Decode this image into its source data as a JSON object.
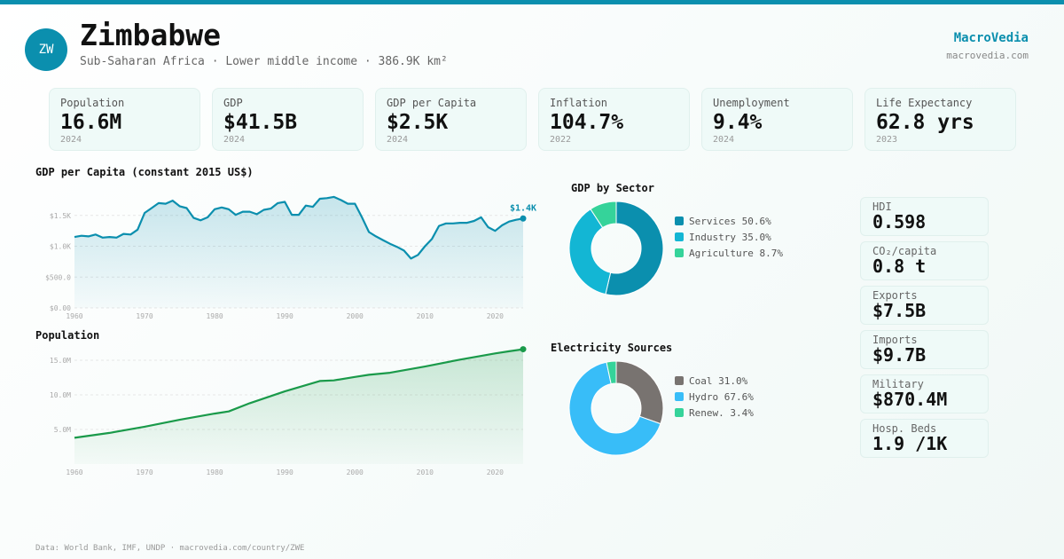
{
  "header": {
    "badge": "ZW",
    "title": "Zimbabwe",
    "subtitle": "Sub-Saharan Africa · Lower middle income · 386.9K km²",
    "brand": "MacroVedia",
    "brand_url": "macrovedia.com"
  },
  "stats": [
    {
      "label": "Population",
      "value": "16.6M",
      "year": "2024"
    },
    {
      "label": "GDP",
      "value": "$41.5B",
      "year": "2024"
    },
    {
      "label": "GDP per Capita",
      "value": "$2.5K",
      "year": "2024"
    },
    {
      "label": "Inflation",
      "value": "104.7%",
      "year": "2022"
    },
    {
      "label": "Unemployment",
      "value": "9.4%",
      "year": "2024"
    },
    {
      "label": "Life Expectancy",
      "value": "62.8 yrs",
      "year": "2023"
    }
  ],
  "side_cards": [
    {
      "label": "HDI",
      "value": "0.598"
    },
    {
      "label": "CO₂/capita",
      "value": "0.8 t"
    },
    {
      "label": "Exports",
      "value": "$7.5B"
    },
    {
      "label": "Imports",
      "value": "$9.7B"
    },
    {
      "label": "Military",
      "value": "$870.4M"
    },
    {
      "label": "Hosp. Beds",
      "value": "1.9 /1K"
    }
  ],
  "footer": "Data: World Bank, IMF, UNDP · macrovedia.com/country/ZWE",
  "colors": {
    "accent": "#0b8fae",
    "gdp_line": "#0b8fae",
    "pop_line": "#1a9a4a"
  },
  "chart_data": [
    {
      "type": "area",
      "title": "GDP per Capita (constant 2015 US$)",
      "x": [
        1960,
        1961,
        1962,
        1963,
        1964,
        1965,
        1966,
        1967,
        1968,
        1969,
        1970,
        1971,
        1972,
        1973,
        1974,
        1975,
        1976,
        1977,
        1978,
        1979,
        1980,
        1981,
        1982,
        1983,
        1984,
        1985,
        1986,
        1987,
        1988,
        1989,
        1990,
        1991,
        1992,
        1993,
        1994,
        1995,
        1996,
        1997,
        1998,
        1999,
        2000,
        2001,
        2002,
        2003,
        2004,
        2005,
        2006,
        2007,
        2008,
        2009,
        2010,
        2011,
        2012,
        2013,
        2014,
        2015,
        2016,
        2017,
        2018,
        2019,
        2020,
        2021,
        2022,
        2023,
        2024
      ],
      "values": [
        1150,
        1170,
        1160,
        1190,
        1140,
        1150,
        1140,
        1200,
        1190,
        1270,
        1540,
        1620,
        1700,
        1690,
        1740,
        1650,
        1620,
        1460,
        1420,
        1470,
        1600,
        1630,
        1600,
        1510,
        1560,
        1560,
        1520,
        1590,
        1610,
        1700,
        1720,
        1510,
        1510,
        1660,
        1640,
        1770,
        1780,
        1800,
        1750,
        1690,
        1690,
        1470,
        1230,
        1160,
        1100,
        1040,
        990,
        930,
        800,
        860,
        1000,
        1120,
        1330,
        1370,
        1370,
        1380,
        1380,
        1410,
        1470,
        1310,
        1250,
        1340,
        1400,
        1430,
        1450
      ],
      "yticks": [
        "$0.00",
        "$500.0",
        "$1.0K",
        "$1.5K"
      ],
      "ytick_values": [
        0,
        500,
        1000,
        1500
      ],
      "xticks": [
        1960,
        1970,
        1980,
        1990,
        2000,
        2010,
        2020
      ],
      "ylim": [
        0,
        1900
      ],
      "end_label": "$1.4K"
    },
    {
      "type": "area",
      "title": "Population",
      "x": [
        1960,
        1965,
        1970,
        1975,
        1980,
        1982,
        1985,
        1990,
        1995,
        1997,
        2000,
        2002,
        2005,
        2010,
        2015,
        2020,
        2022,
        2024
      ],
      "values": [
        3.8,
        4.5,
        5.4,
        6.4,
        7.3,
        7.6,
        8.8,
        10.5,
        12.0,
        12.1,
        12.6,
        12.9,
        13.2,
        14.1,
        15.1,
        16.0,
        16.3,
        16.6
      ],
      "yticks": [
        "5.0M",
        "10.0M",
        "15.0M"
      ],
      "ytick_values": [
        5,
        10,
        15
      ],
      "xticks": [
        1960,
        1970,
        1980,
        1990,
        2000,
        2010,
        2020
      ],
      "ylim": [
        0,
        17.7
      ],
      "end_label": "16.6M"
    },
    {
      "type": "pie",
      "title": "GDP by Sector",
      "series": [
        {
          "name": "Services",
          "value": 50.6,
          "label": "Services 50.6%",
          "color": "#0b8fae"
        },
        {
          "name": "Industry",
          "value": 35.0,
          "label": "Industry 35.0%",
          "color": "#13b6d4"
        },
        {
          "name": "Agriculture",
          "value": 8.7,
          "label": "Agriculture 8.7%",
          "color": "#35d39a"
        }
      ]
    },
    {
      "type": "pie",
      "title": "Electricity Sources",
      "series": [
        {
          "name": "Coal",
          "value": 31.0,
          "label": "Coal 31.0%",
          "color": "#787370"
        },
        {
          "name": "Hydro",
          "value": 67.6,
          "label": "Hydro 67.6%",
          "color": "#38bdf8"
        },
        {
          "name": "Renew.",
          "value": 3.4,
          "label": "Renew. 3.4%",
          "color": "#35d39a"
        }
      ]
    }
  ]
}
